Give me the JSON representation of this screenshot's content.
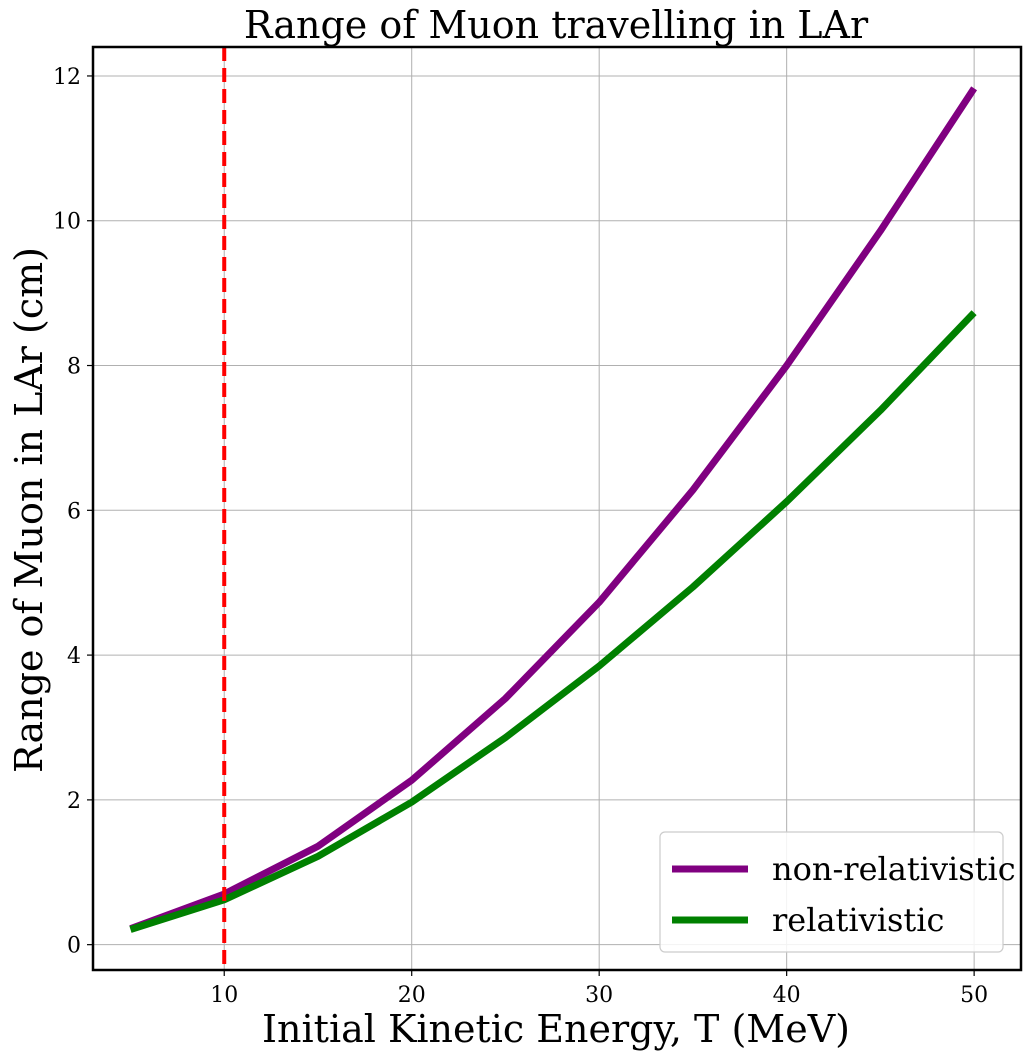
{
  "chart_data": {
    "type": "line",
    "title": "Range of Muon travelling in LAr",
    "xlabel": "Initial Kinetic Energy, T (MeV)",
    "ylabel": "Range of Muon in LAr (cm)",
    "xlim": [
      3,
      52.5
    ],
    "ylim": [
      -0.35,
      12.4
    ],
    "xticks": [
      10,
      20,
      30,
      40,
      50
    ],
    "yticks": [
      0,
      2,
      4,
      6,
      8,
      10,
      12
    ],
    "grid": true,
    "legend_position": "lower-right",
    "x": [
      5,
      10,
      15,
      20,
      25,
      30,
      35,
      40,
      45,
      50
    ],
    "series": [
      {
        "name": "non-relativistic",
        "color": "#800080",
        "values": [
          0.22,
          0.7,
          1.36,
          2.27,
          3.4,
          4.73,
          6.28,
          8.0,
          9.86,
          11.83
        ]
      },
      {
        "name": "relativistic",
        "color": "#008000",
        "values": [
          0.21,
          0.62,
          1.22,
          1.97,
          2.86,
          3.85,
          4.94,
          6.12,
          7.38,
          8.73
        ]
      }
    ],
    "vline": {
      "x": 10,
      "color": "#ff0000",
      "style": "dashed"
    }
  }
}
